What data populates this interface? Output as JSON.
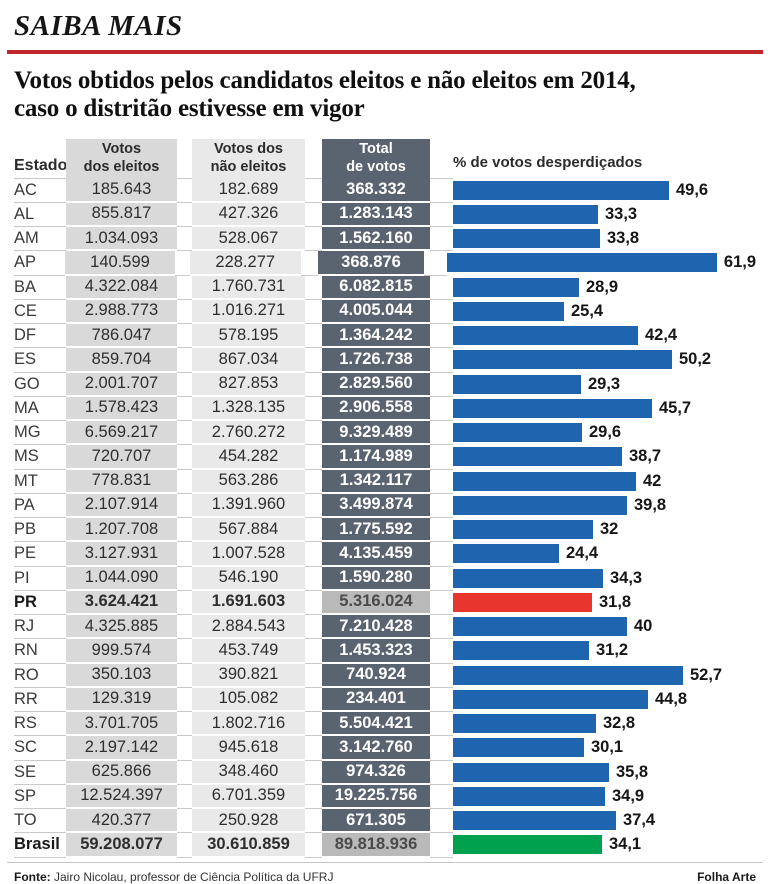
{
  "header": {
    "kicker": "SAIBA MAIS",
    "title_line1": "Votos obtidos pelos candidatos eleitos e não eleitos em 2014,",
    "title_line2": "caso o distritão estivesse em vigor"
  },
  "columns": {
    "estado": "Estado",
    "eleitos_line1": "Votos",
    "eleitos_line2": "dos eleitos",
    "nao_eleitos_line1": "Votos dos",
    "nao_eleitos_line2": "não eleitos",
    "total_line1": "Total",
    "total_line2": "de votos",
    "bar_header": "% de votos desperdiçados"
  },
  "table": {
    "rows": [
      {
        "estado": "AC",
        "eleitos": "185.643",
        "nao_eleitos": "182.689",
        "total": "368.332"
      },
      {
        "estado": "AL",
        "eleitos": "855.817",
        "nao_eleitos": "427.326",
        "total": "1.283.143"
      },
      {
        "estado": "AM",
        "eleitos": "1.034.093",
        "nao_eleitos": "528.067",
        "total": "1.562.160"
      },
      {
        "estado": "AP",
        "eleitos": "140.599",
        "nao_eleitos": "228.277",
        "total": "368.876"
      },
      {
        "estado": "BA",
        "eleitos": "4.322.084",
        "nao_eleitos": "1.760.731",
        "total": "6.082.815"
      },
      {
        "estado": "CE",
        "eleitos": "2.988.773",
        "nao_eleitos": "1.016.271",
        "total": "4.005.044"
      },
      {
        "estado": "DF",
        "eleitos": "786.047",
        "nao_eleitos": "578.195",
        "total": "1.364.242"
      },
      {
        "estado": "ES",
        "eleitos": "859.704",
        "nao_eleitos": "867.034",
        "total": "1.726.738"
      },
      {
        "estado": "GO",
        "eleitos": "2.001.707",
        "nao_eleitos": "827.853",
        "total": "2.829.560"
      },
      {
        "estado": "MA",
        "eleitos": "1.578.423",
        "nao_eleitos": "1.328.135",
        "total": "2.906.558"
      },
      {
        "estado": "MG",
        "eleitos": "6.569.217",
        "nao_eleitos": "2.760.272",
        "total": "9.329.489"
      },
      {
        "estado": "MS",
        "eleitos": "720.707",
        "nao_eleitos": "454.282",
        "total": "1.174.989"
      },
      {
        "estado": "MT",
        "eleitos": "778.831",
        "nao_eleitos": "563.286",
        "total": "1.342.117"
      },
      {
        "estado": "PA",
        "eleitos": "2.107.914",
        "nao_eleitos": "1.391.960",
        "total": "3.499.874"
      },
      {
        "estado": "PB",
        "eleitos": "1.207.708",
        "nao_eleitos": "567.884",
        "total": "1.775.592"
      },
      {
        "estado": "PE",
        "eleitos": "3.127.931",
        "nao_eleitos": "1.007.528",
        "total": "4.135.459"
      },
      {
        "estado": "PI",
        "eleitos": "1.044.090",
        "nao_eleitos": "546.190",
        "total": "1.590.280"
      },
      {
        "estado": "PR",
        "eleitos": "3.624.421",
        "nao_eleitos": "1.691.603",
        "total": "5.316.024",
        "highlight": "red"
      },
      {
        "estado": "RJ",
        "eleitos": "4.325.885",
        "nao_eleitos": "2.884.543",
        "total": "7.210.428"
      },
      {
        "estado": "RN",
        "eleitos": "999.574",
        "nao_eleitos": "453.749",
        "total": "1.453.323"
      },
      {
        "estado": "RO",
        "eleitos": "350.103",
        "nao_eleitos": "390.821",
        "total": "740.924"
      },
      {
        "estado": "RR",
        "eleitos": "129.319",
        "nao_eleitos": "105.082",
        "total": "234.401"
      },
      {
        "estado": "RS",
        "eleitos": "3.701.705",
        "nao_eleitos": "1.802.716",
        "total": "5.504.421"
      },
      {
        "estado": "SC",
        "eleitos": "2.197.142",
        "nao_eleitos": "945.618",
        "total": "3.142.760"
      },
      {
        "estado": "SE",
        "eleitos": "625.866",
        "nao_eleitos": "348.460",
        "total": "974.326"
      },
      {
        "estado": "SP",
        "eleitos": "12.524.397",
        "nao_eleitos": "6.701.359",
        "total": "19.225.756"
      },
      {
        "estado": "TO",
        "eleitos": "420.377",
        "nao_eleitos": "250.928",
        "total": "671.305"
      },
      {
        "estado": "Brasil",
        "eleitos": "59.208.077",
        "nao_eleitos": "30.610.859",
        "total": "89.818.936",
        "highlight": "green"
      }
    ]
  },
  "chart_data": {
    "type": "bar",
    "title": "% de votos desperdiçados",
    "orientation": "horizontal",
    "xlim": [
      0,
      65
    ],
    "grid": false,
    "categories": [
      "AC",
      "AL",
      "AM",
      "AP",
      "BA",
      "CE",
      "DF",
      "ES",
      "GO",
      "MA",
      "MG",
      "MS",
      "MT",
      "PA",
      "PB",
      "PE",
      "PI",
      "PR",
      "RJ",
      "RN",
      "RO",
      "RR",
      "RS",
      "SC",
      "SE",
      "SP",
      "TO",
      "Brasil"
    ],
    "values": [
      49.6,
      33.3,
      33.8,
      61.9,
      28.9,
      25.4,
      42.4,
      50.2,
      29.3,
      45.7,
      29.6,
      38.7,
      42,
      39.8,
      32,
      24.4,
      34.3,
      31.8,
      40,
      31.2,
      52.7,
      44.8,
      32.8,
      30.1,
      35.8,
      34.9,
      37.4,
      34.1
    ],
    "labels": [
      "49,6",
      "33,3",
      "33,8",
      "61,9",
      "28,9",
      "25,4",
      "42,4",
      "50,2",
      "29,3",
      "45,7",
      "29,6",
      "38,7",
      "42",
      "39,8",
      "32",
      "24,4",
      "34,3",
      "31,8",
      "40",
      "31,2",
      "52,7",
      "44,8",
      "32,8",
      "30,1",
      "35,8",
      "34,9",
      "37,4",
      "34,1"
    ]
  },
  "colors": {
    "blue": "#1e64ae",
    "red": "#e8362e",
    "green": "#00a14e",
    "dark": "#5a6370",
    "hl": "#b9b9b9",
    "stripe1": "#d9d9d9",
    "stripe2": "#e9e9e9",
    "rule": "#c0272d"
  },
  "footer": {
    "source_label": "Fonte:",
    "source_text": " Jairo Nicolau, professor de Ciência Política da UFRJ",
    "credit": "Folha Arte"
  }
}
